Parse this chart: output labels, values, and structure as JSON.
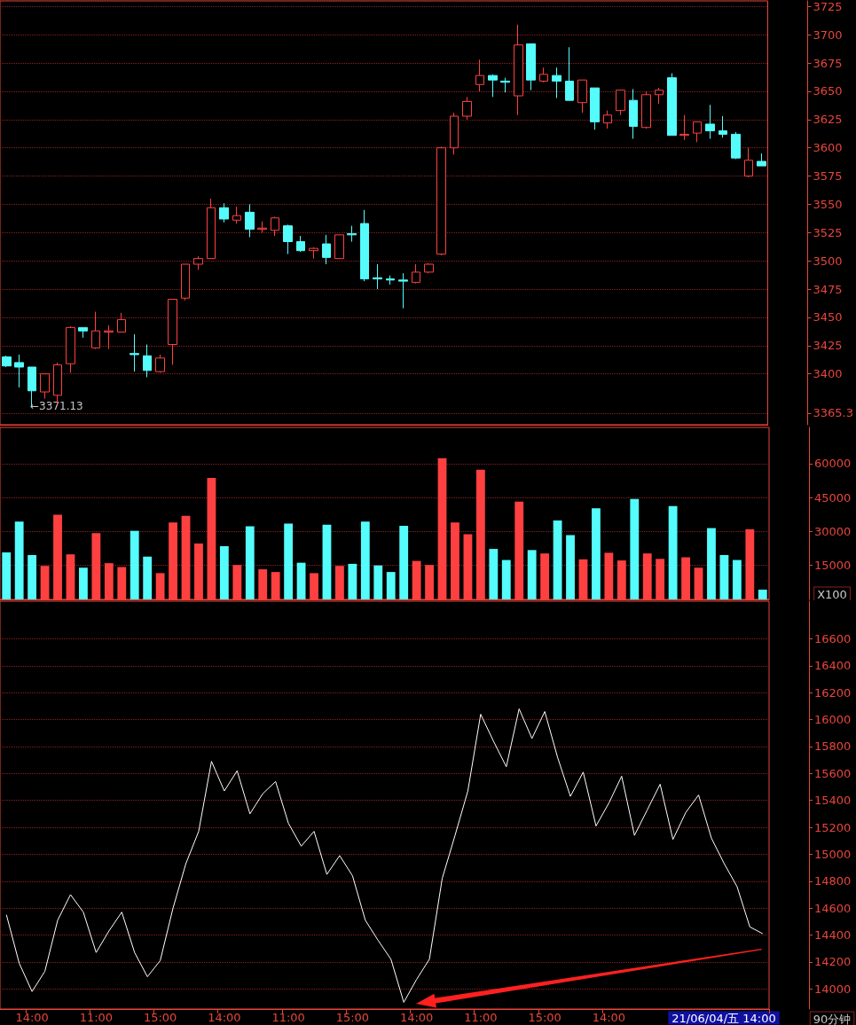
{
  "chart_data": [
    {
      "type": "candlestick",
      "colors": [
        "#54fcfc",
        "#54fcfc",
        "#54fcfc",
        "#ff4040",
        "#ff4040",
        "#ff4040",
        "#54fcfc",
        "#ff4040",
        "#ff4040",
        "#ff4040",
        "#54fcfc",
        "#54fcfc",
        "#ff4040",
        "#ff4040",
        "#ff4040",
        "#ff4040",
        "#ff4040",
        "#54fcfc",
        "#ff4040",
        "#54fcfc",
        "#ff4040",
        "#ff4040",
        "#54fcfc",
        "#54fcfc",
        "#ff4040",
        "#54fcfc",
        "#ff4040",
        "#54fcfc",
        "#54fcfc",
        "#54fcfc",
        "#54fcfc",
        "#54fcfc",
        "#ff4040",
        "#ff4040",
        "#ff4040",
        "#ff4040",
        "#ff4040",
        "#ff4040",
        "#54fcfc",
        "#54fcfc",
        "#ff4040",
        "#54fcfc",
        "#ff4040",
        "#54fcfc",
        "#54fcfc",
        "#ff4040",
        "#54fcfc",
        "#ff4040",
        "#ff4040",
        "#54fcfc",
        "#ff4040",
        "#ff4040",
        "#54fcfc",
        "#ff4040",
        "#ff4040",
        "#54fcfc",
        "#54fcfc",
        "#54fcfc",
        "#ff4040",
        "#54fcfc"
      ],
      "categories": [
        null,
        null,
        null,
        null,
        null,
        null,
        null,
        null,
        null,
        null,
        null,
        null,
        null,
        null,
        null,
        null,
        null,
        null,
        null,
        null,
        null,
        null,
        null,
        null,
        null,
        null,
        null,
        null,
        null,
        null,
        null,
        null,
        null,
        null,
        null,
        null,
        null,
        null,
        null,
        null,
        null,
        null,
        null,
        null,
        null,
        null,
        null,
        null,
        null,
        null,
        null,
        null,
        null,
        null,
        null,
        null,
        null,
        null,
        null,
        null
      ],
      "ohlc": [
        [
          3415,
          3416,
          3406,
          3407
        ],
        [
          3410,
          3417,
          3388,
          3406
        ],
        [
          3406,
          3406,
          3371.13,
          3385
        ],
        [
          3384,
          3400,
          3378,
          3400
        ],
        [
          3381,
          3410,
          3373,
          3408
        ],
        [
          3409,
          3442,
          3401,
          3441
        ],
        [
          3441,
          3441,
          3432,
          3438
        ],
        [
          3423,
          3455,
          3422,
          3438
        ],
        [
          3437,
          3443,
          3422,
          3438
        ],
        [
          3437,
          3454,
          3437,
          3448
        ],
        [
          3418,
          3435,
          3402,
          3417
        ],
        [
          3416,
          3426,
          3397,
          3403
        ],
        [
          3402,
          3417,
          3401,
          3414
        ],
        [
          3426,
          3466,
          3408,
          3466
        ],
        [
          3467,
          3497,
          3465,
          3497
        ],
        [
          3497,
          3504,
          3492,
          3502
        ],
        [
          3502,
          3555,
          3502,
          3547
        ],
        [
          3547,
          3551,
          3534,
          3537
        ],
        [
          3536,
          3548,
          3533,
          3540
        ],
        [
          3543,
          3550,
          3521,
          3528
        ],
        [
          3528,
          3535,
          3525,
          3529
        ],
        [
          3527,
          3539,
          3522,
          3538
        ],
        [
          3531,
          3532,
          3506,
          3517
        ],
        [
          3517,
          3522,
          3508,
          3509
        ],
        [
          3509,
          3512,
          3502,
          3511
        ],
        [
          3515,
          3523,
          3497,
          3503
        ],
        [
          3502,
          3523,
          3502,
          3523
        ],
        [
          3524,
          3531,
          3517,
          3523
        ],
        [
          3533,
          3545,
          3482,
          3484
        ],
        [
          3485,
          3497,
          3475,
          3484
        ],
        [
          3484,
          3487,
          3479,
          3483
        ],
        [
          3483,
          3489,
          3458,
          3482
        ],
        [
          3481,
          3497,
          3480,
          3490
        ],
        [
          3490,
          3498,
          3489,
          3497
        ],
        [
          3506,
          3601,
          3505,
          3600
        ],
        [
          3600,
          3631,
          3594,
          3628
        ],
        [
          3628,
          3645,
          3625,
          3641
        ],
        [
          3656,
          3678,
          3650,
          3664
        ],
        [
          3664,
          3665,
          3645,
          3660
        ],
        [
          3659,
          3662,
          3649,
          3658
        ],
        [
          3646,
          3709,
          3629,
          3691
        ],
        [
          3692,
          3692,
          3651,
          3660
        ],
        [
          3659,
          3671,
          3658,
          3665
        ],
        [
          3664,
          3671,
          3644,
          3659
        ],
        [
          3659,
          3689,
          3642,
          3642
        ],
        [
          3640,
          3660,
          3631,
          3660
        ],
        [
          3653,
          3653,
          3616,
          3623
        ],
        [
          3622,
          3633,
          3617,
          3629
        ],
        [
          3633,
          3651,
          3629,
          3651
        ],
        [
          3642,
          3652,
          3608,
          3619
        ],
        [
          3618,
          3650,
          3617,
          3647
        ],
        [
          3647,
          3653,
          3639,
          3651
        ],
        [
          3662,
          3666,
          3611,
          3611
        ],
        [
          3611,
          3629,
          3607,
          3612
        ],
        [
          3613,
          3623,
          3605,
          3623
        ],
        [
          3621,
          3638,
          3608,
          3615
        ],
        [
          3615,
          3628,
          3609,
          3612
        ],
        [
          3612,
          3614,
          3590,
          3591
        ],
        [
          3575,
          3600,
          3574,
          3589
        ],
        [
          3588,
          3595,
          3584,
          3584
        ]
      ],
      "ylim": [
        3355,
        3730
      ],
      "yticks": [
        3365.3,
        3400,
        3425,
        3450,
        3475,
        3500,
        3525,
        3550,
        3575,
        3600,
        3625,
        3650,
        3675,
        3700,
        3725
      ],
      "grid": "y",
      "tick_labels": "y",
      "annotations": [
        {
          "text": "←3371.13",
          "y": 3371.13
        }
      ]
    },
    {
      "type": "bar",
      "categories": [
        null,
        null,
        null,
        null,
        null,
        null,
        null,
        null,
        null,
        null,
        null,
        null,
        null,
        null,
        null,
        null,
        null,
        null,
        null,
        null,
        null,
        null,
        null,
        null,
        null,
        null,
        null,
        null,
        null,
        null,
        null,
        null,
        null,
        null,
        null,
        null,
        null,
        null,
        null,
        null,
        null,
        null,
        null,
        null,
        null,
        null,
        null,
        null,
        null,
        null,
        null,
        null,
        null,
        null,
        null,
        null,
        null,
        null,
        null,
        null
      ],
      "values": [
        20800,
        34400,
        19600,
        14800,
        37400,
        19900,
        14000,
        29300,
        16000,
        14300,
        30300,
        18900,
        11600,
        34000,
        36900,
        24700,
        53700,
        23500,
        15200,
        32300,
        13300,
        12100,
        33500,
        16200,
        11600,
        33000,
        14800,
        15700,
        34400,
        15000,
        12100,
        32500,
        17000,
        15200,
        62400,
        34000,
        28800,
        57300,
        22300,
        17400,
        43200,
        21800,
        20300,
        34900,
        28400,
        17700,
        40300,
        20600,
        17200,
        44400,
        20300,
        17900,
        41200,
        18600,
        14000,
        31500,
        19600,
        17400,
        31000,
        4300
      ],
      "colors": [
        "#54fcfc",
        "#54fcfc",
        "#54fcfc",
        "#ff4040",
        "#ff4040",
        "#ff4040",
        "#54fcfc",
        "#ff4040",
        "#ff4040",
        "#ff4040",
        "#54fcfc",
        "#54fcfc",
        "#ff4040",
        "#ff4040",
        "#ff4040",
        "#ff4040",
        "#ff4040",
        "#54fcfc",
        "#ff4040",
        "#54fcfc",
        "#ff4040",
        "#ff4040",
        "#54fcfc",
        "#54fcfc",
        "#ff4040",
        "#54fcfc",
        "#ff4040",
        "#54fcfc",
        "#54fcfc",
        "#54fcfc",
        "#54fcfc",
        "#54fcfc",
        "#ff4040",
        "#ff4040",
        "#ff4040",
        "#ff4040",
        "#ff4040",
        "#ff4040",
        "#54fcfc",
        "#54fcfc",
        "#ff4040",
        "#54fcfc",
        "#ff4040",
        "#54fcfc",
        "#54fcfc",
        "#ff4040",
        "#54fcfc",
        "#ff4040",
        "#ff4040",
        "#54fcfc",
        "#ff4040",
        "#ff4040",
        "#54fcfc",
        "#ff4040",
        "#ff4040",
        "#54fcfc",
        "#54fcfc",
        "#54fcfc",
        "#ff4040",
        "#54fcfc"
      ],
      "ylim": [
        0,
        76000
      ],
      "yticks": [
        15000,
        30000,
        45000,
        60000
      ],
      "grid": "y",
      "tick_labels": "y",
      "annotations": [
        "X100"
      ]
    },
    {
      "type": "line",
      "color": "#ffffff",
      "marker": "none",
      "line_style": "solid",
      "categories": [
        null,
        null,
        "14:00",
        null,
        null,
        null,
        null,
        "11:00",
        null,
        null,
        null,
        null,
        "15:00",
        null,
        null,
        null,
        null,
        "14:00",
        null,
        null,
        null,
        null,
        "11:00",
        null,
        null,
        null,
        null,
        "15:00",
        null,
        null,
        null,
        null,
        "14:00",
        null,
        null,
        null,
        null,
        "11:00",
        null,
        null,
        null,
        null,
        "15:00",
        null,
        null,
        null,
        null,
        "14:00",
        null,
        null,
        null,
        null,
        null,
        null,
        null,
        null,
        null,
        null,
        null,
        null
      ],
      "values": [
        14550,
        14190,
        13980,
        14130,
        14510,
        14700,
        14570,
        14270,
        14430,
        14570,
        14270,
        14090,
        14210,
        14600,
        14930,
        15170,
        15690,
        15470,
        15620,
        15300,
        15450,
        15540,
        15230,
        15060,
        15170,
        14850,
        14990,
        14840,
        14510,
        14360,
        14220,
        13900,
        14070,
        14220,
        14820,
        15140,
        15470,
        16040,
        15840,
        15650,
        16080,
        15860,
        16060,
        15720,
        15430,
        15610,
        15210,
        15380,
        15580,
        15140,
        15330,
        15520,
        15110,
        15310,
        15440,
        15120,
        14930,
        14760,
        14460,
        14410
      ],
      "ylim": [
        13850,
        16880
      ],
      "yticks": [
        14000,
        14200,
        14400,
        14600,
        14800,
        15000,
        15200,
        15400,
        15600,
        15800,
        16000,
        16200,
        16400,
        16600
      ],
      "grid": "y",
      "annotations": [
        "90分钟",
        "21/06/04/五 14:00"
      ]
    }
  ]
}
